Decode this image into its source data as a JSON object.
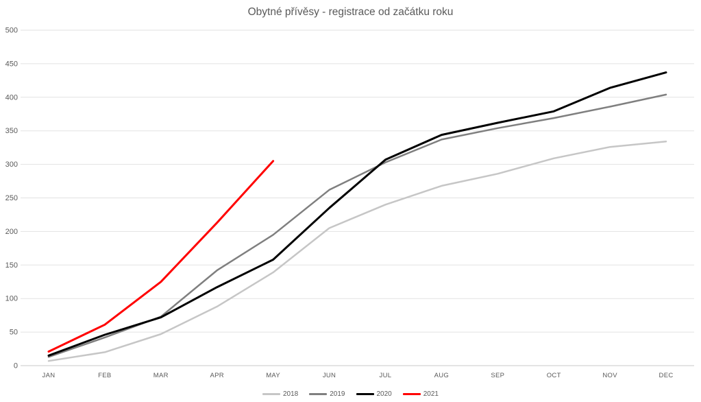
{
  "title": "Obytné přívěsy - registrace od začátku roku",
  "colors": {
    "background": "#ffffff",
    "title_text": "#595959",
    "tick_text": "#595959",
    "gridline": "#e2e2e2",
    "axis_line": "#c9c9c9",
    "series_2018": "#c6c6c6",
    "series_2019": "#7f7f7f",
    "series_2020": "#000000",
    "series_2021": "#ff0000"
  },
  "chart_data": {
    "type": "line",
    "title": "Obytné přívěsy - registrace od začátku roku",
    "categories": [
      "JAN",
      "FEB",
      "MAR",
      "APR",
      "MAY",
      "JUN",
      "JUL",
      "AUG",
      "SEP",
      "OCT",
      "NOV",
      "DEC"
    ],
    "series": [
      {
        "name": "2018",
        "color": "#c6c6c6",
        "stroke_width": 2.5,
        "values": [
          7,
          20,
          47,
          88,
          139,
          205,
          240,
          268,
          286,
          309,
          326,
          334
        ]
      },
      {
        "name": "2019",
        "color": "#7f7f7f",
        "stroke_width": 2.5,
        "values": [
          13,
          42,
          73,
          142,
          195,
          262,
          303,
          337,
          354,
          369,
          386,
          404
        ]
      },
      {
        "name": "2020",
        "color": "#000000",
        "stroke_width": 3,
        "values": [
          15,
          46,
          72,
          117,
          158,
          235,
          307,
          344,
          362,
          379,
          414,
          437
        ]
      },
      {
        "name": "2021",
        "color": "#ff0000",
        "stroke_width": 3,
        "values": [
          21,
          61,
          125,
          213,
          305,
          null,
          null,
          null,
          null,
          null,
          null,
          null
        ]
      }
    ],
    "xlabel": "",
    "ylabel": "",
    "ylim": [
      0,
      500
    ],
    "ytick_step": 50,
    "ytick_labels": [
      "0",
      "50",
      "100",
      "150",
      "200",
      "250",
      "300",
      "350",
      "400",
      "450",
      "500"
    ],
    "grid": true,
    "legend_position": "bottom",
    "legend_entries": [
      "2018",
      "2019",
      "2020",
      "2021"
    ]
  }
}
